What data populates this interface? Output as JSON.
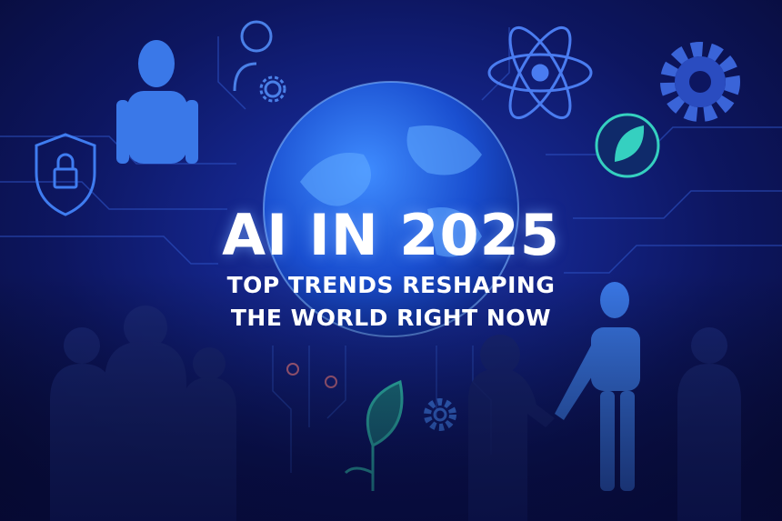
{
  "headline": "AI IN 2025",
  "subheadline_line1": "TOP TRENDS RESHAPING",
  "subheadline_line2": "THE WORLD RIGHT NOW",
  "colors": {
    "background": "#0a0f3d",
    "accent_blue": "#3d8bff",
    "accent_purple": "#8a4dff",
    "accent_teal": "#35d0c0",
    "text": "#ffffff"
  },
  "icons": [
    "shield-lock-icon",
    "robot-icon",
    "person-gear-icon",
    "atom-icon",
    "gear-icon",
    "leaf-icon",
    "globe-icon",
    "handshake-icon",
    "plant-icon",
    "circuit-lines"
  ]
}
